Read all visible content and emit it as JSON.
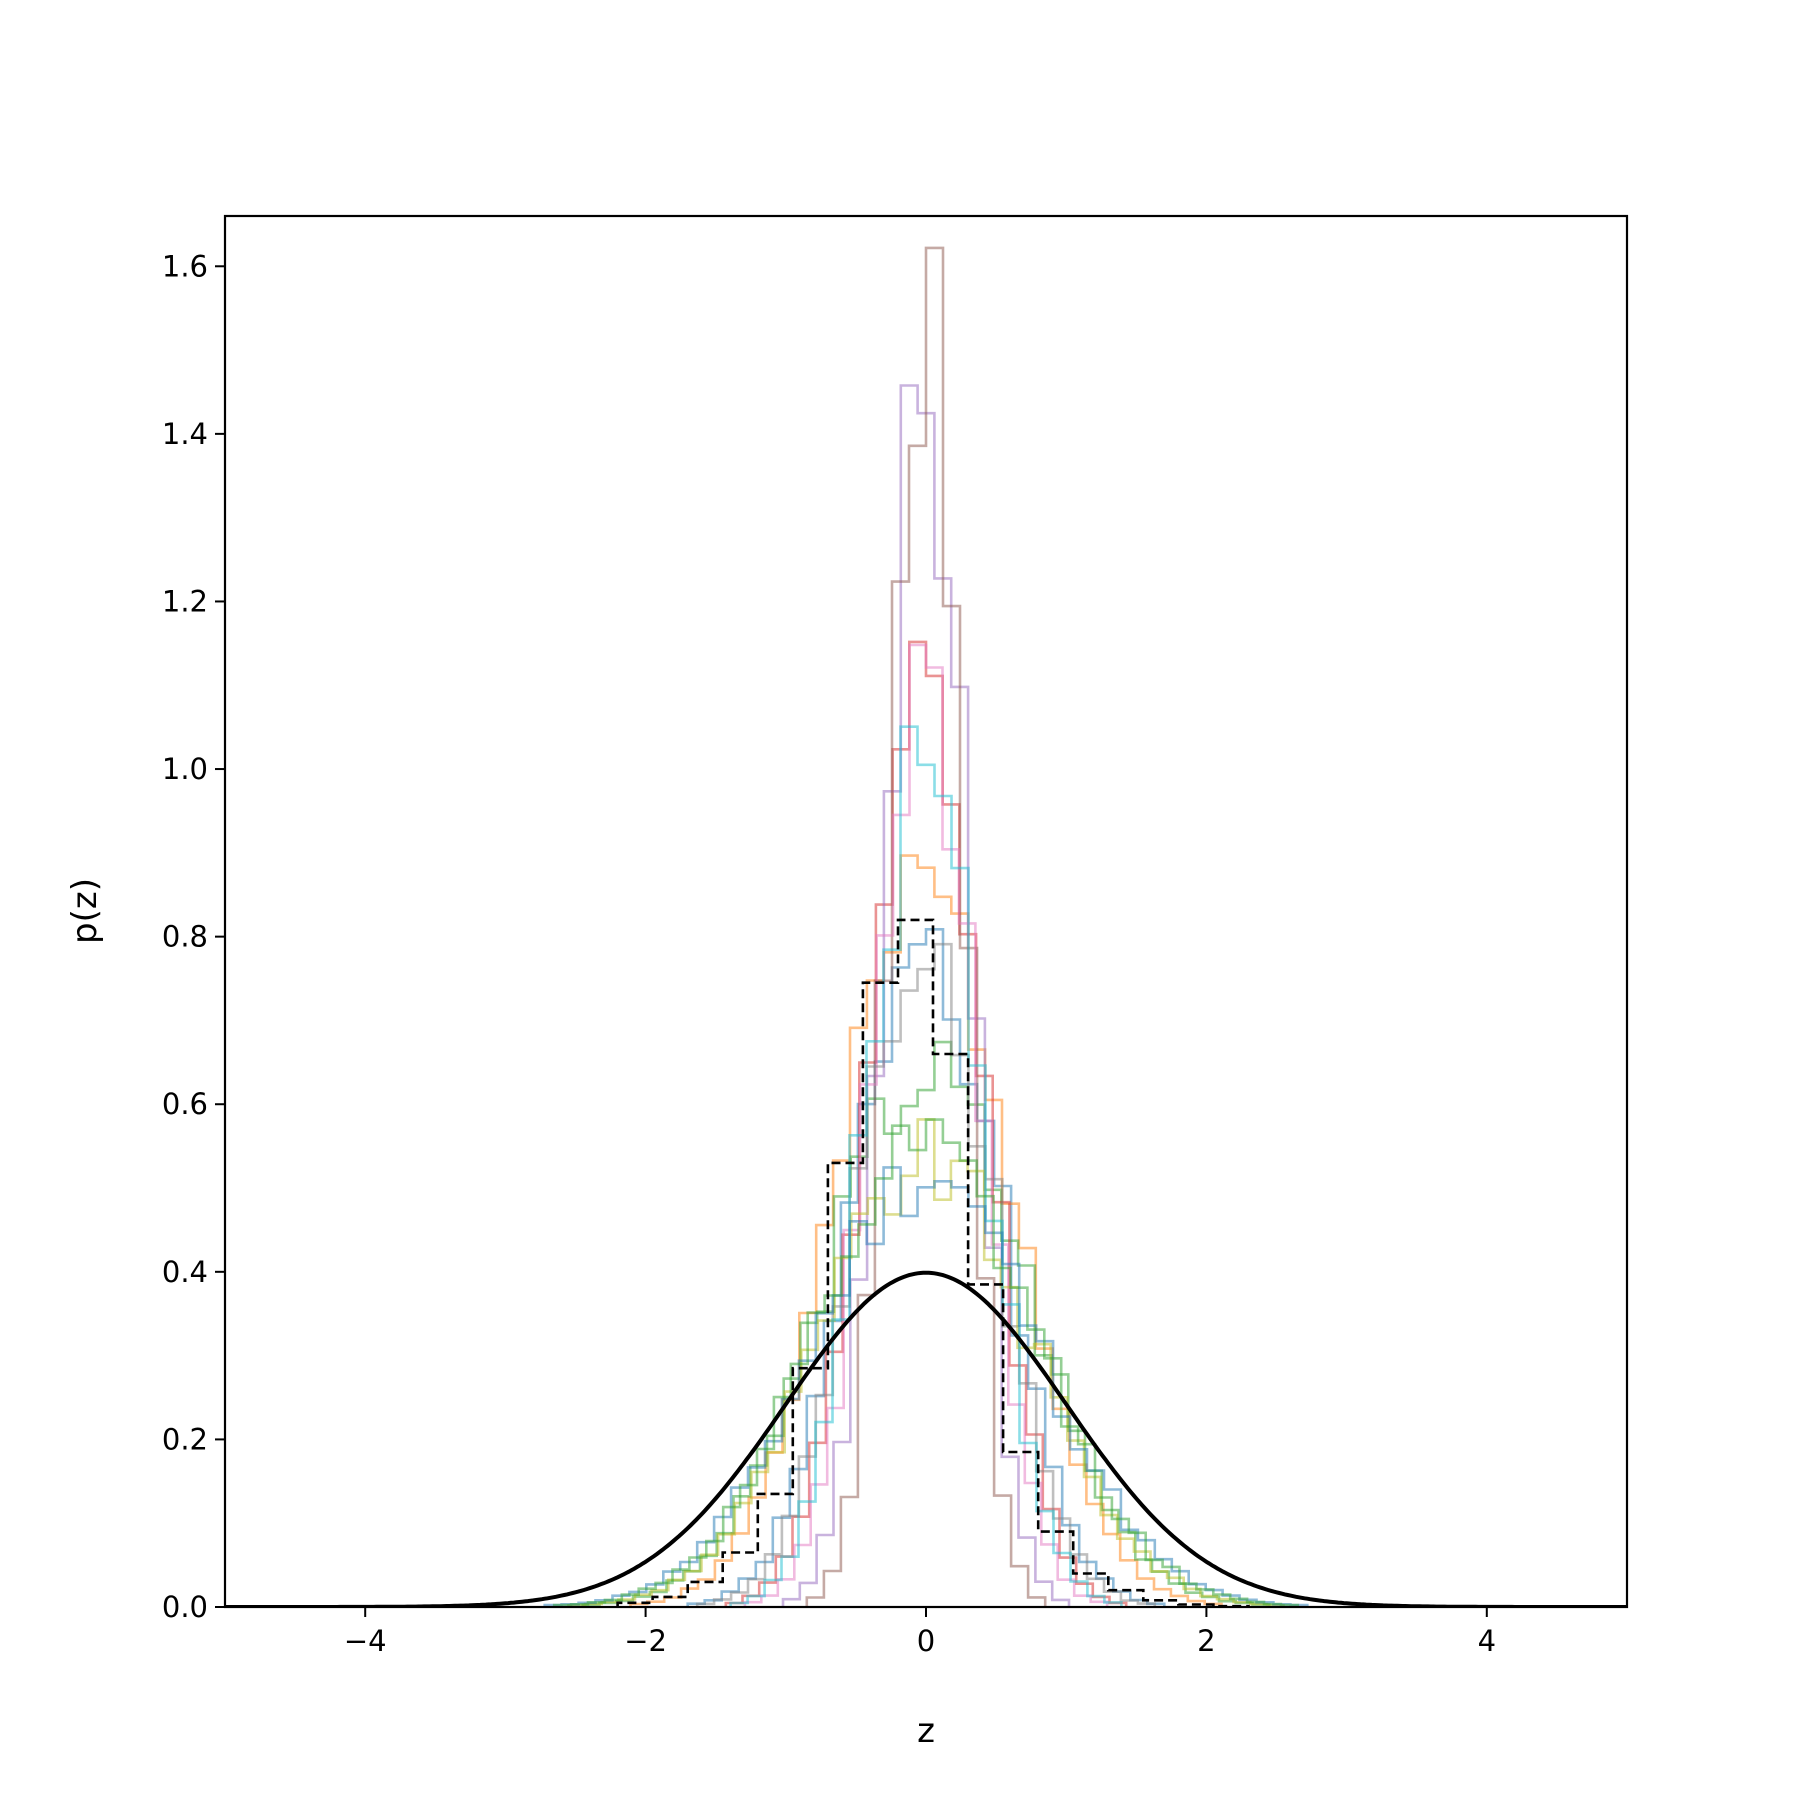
{
  "chart_data": {
    "type": "histogram",
    "xlabel": "z",
    "ylabel": "p(z)",
    "xlim": [
      -5.0,
      5.0
    ],
    "ylim": [
      0.0,
      1.66
    ],
    "xticks": [
      -4,
      -2,
      0,
      2,
      4
    ],
    "xtick_labels": [
      "−4",
      "−2",
      "0",
      "2",
      "4"
    ],
    "yticks": [
      0.0,
      0.2,
      0.4,
      0.6,
      0.8,
      1.0,
      1.2,
      1.4,
      1.6
    ],
    "ytick_labels": [
      "0.0",
      "0.2",
      "0.4",
      "0.6",
      "0.8",
      "1.0",
      "1.2",
      "1.4",
      "1.6"
    ],
    "grid": false,
    "legend": "none",
    "reference_curve": {
      "kind": "standard normal pdf",
      "mean": 0,
      "std": 1,
      "peak": 0.399,
      "color": "#000000"
    },
    "series": [
      {
        "color": "#1f77b4",
        "std": 0.5,
        "peak": 0.83
      },
      {
        "color": "#ff7f0e",
        "std": 0.62,
        "peak": 0.85
      },
      {
        "color": "#2ca02c",
        "std": 0.72,
        "peak": 0.64
      },
      {
        "color": "#d62728",
        "std": 0.42,
        "peak": 1.07
      },
      {
        "color": "#9467bd",
        "std": 0.3,
        "peak": 1.44
      },
      {
        "color": "#8c564b",
        "std": 0.25,
        "peak": 1.58
      },
      {
        "color": "#e377c2",
        "std": 0.38,
        "peak": 1.1
      },
      {
        "color": "#7f7f7f",
        "std": 0.48,
        "peak": 0.81
      },
      {
        "color": "#bcbd22",
        "std": 0.75,
        "peak": 0.53
      },
      {
        "color": "#17becf",
        "std": 0.41,
        "peak": 1.03
      },
      {
        "color": "#1f77b4",
        "std": 0.8,
        "peak": 0.52
      },
      {
        "color": "#2ca02c",
        "std": 0.78,
        "peak": 0.54
      }
    ],
    "dashed_histogram": {
      "color": "#000000",
      "bin_width": 0.25,
      "bins_left": [
        -2.2,
        -1.95,
        -1.7,
        -1.45,
        -1.2,
        -0.95,
        -0.7,
        -0.45,
        -0.2,
        0.05,
        0.3,
        0.55,
        0.8,
        1.05,
        1.3,
        1.55,
        1.8,
        2.05
      ],
      "values": [
        0.005,
        0.012,
        0.03,
        0.065,
        0.135,
        0.285,
        0.53,
        0.745,
        0.82,
        0.66,
        0.385,
        0.185,
        0.09,
        0.04,
        0.02,
        0.008,
        0.003,
        0.001
      ]
    }
  }
}
